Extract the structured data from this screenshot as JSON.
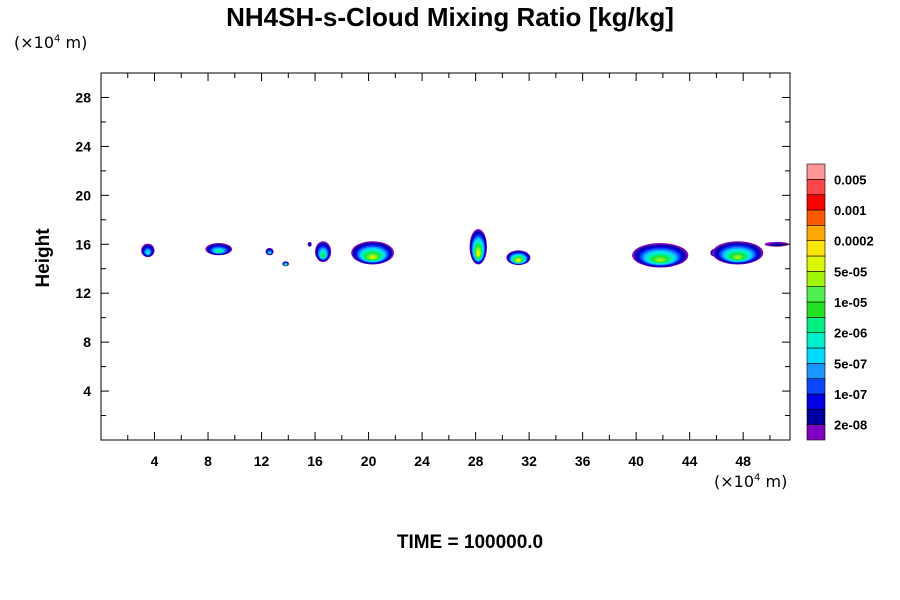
{
  "title": "NH4SH-s-Cloud Mixing Ratio [kg/kg]",
  "y_unit": {
    "prefix": "(×10",
    "exp": "4",
    "suffix": " m)"
  },
  "x_unit": {
    "prefix": "(×10",
    "exp": "4",
    "suffix": " m)"
  },
  "time_label": "TIME = 100000.0",
  "chart_data": {
    "type": "heatmap",
    "title": "NH4SH-s-Cloud Mixing Ratio [kg/kg]",
    "xlabel": "",
    "ylabel": "Height",
    "xlim": [
      0,
      51.5
    ],
    "ylim": [
      0,
      30
    ],
    "x_ticks": [
      4,
      8,
      12,
      16,
      20,
      24,
      28,
      32,
      36,
      40,
      44,
      48
    ],
    "y_ticks": [
      4,
      8,
      12,
      16,
      20,
      24,
      28
    ],
    "x_unit": "×10^4 m",
    "y_unit": "×10^4 m",
    "grid": false,
    "colorbar": {
      "placement": "right",
      "colors": [
        "#7f00bf",
        "#0000a0",
        "#0000e0",
        "#0a46ff",
        "#1996ff",
        "#00dcff",
        "#00f0c8",
        "#00f082",
        "#23e223",
        "#50f050",
        "#a0f500",
        "#dcf500",
        "#ffe600",
        "#ffaa00",
        "#ff5a00",
        "#ff0000",
        "#ff4646",
        "#ff9696"
      ],
      "labels": [
        {
          "text": "2e-08",
          "level": 1
        },
        {
          "text": "1e-07",
          "level": 3
        },
        {
          "text": "5e-07",
          "level": 5
        },
        {
          "text": "2e-06",
          "level": 7
        },
        {
          "text": "1e-05",
          "level": 9
        },
        {
          "text": "5e-05",
          "level": 11
        },
        {
          "text": "0.0002",
          "level": 13
        },
        {
          "text": "0.001",
          "level": 15
        },
        {
          "text": "0.005",
          "level": 17
        }
      ]
    },
    "cells": [
      {
        "x": 3.5,
        "y": 15.5,
        "rx": 0.5,
        "ry": 0.55,
        "max": 6
      },
      {
        "x": 8.8,
        "y": 15.6,
        "rx": 1.0,
        "ry": 0.5,
        "max": 7
      },
      {
        "x": 12.6,
        "y": 15.4,
        "rx": 0.3,
        "ry": 0.3,
        "max": 6
      },
      {
        "x": 13.8,
        "y": 14.4,
        "rx": 0.25,
        "ry": 0.2,
        "max": 8
      },
      {
        "x": 15.6,
        "y": 16.0,
        "rx": 0.15,
        "ry": 0.2,
        "max": 2
      },
      {
        "x": 16.6,
        "y": 15.4,
        "rx": 0.6,
        "ry": 0.85,
        "max": 8
      },
      {
        "x": 20.3,
        "y": 15.3,
        "rx": 1.6,
        "ry": 0.95,
        "max": 11
      },
      {
        "x": 28.2,
        "y": 15.8,
        "rx": 0.65,
        "ry": 1.45,
        "max": 12
      },
      {
        "x": 31.2,
        "y": 14.9,
        "rx": 0.9,
        "ry": 0.6,
        "max": 12
      },
      {
        "x": 41.8,
        "y": 15.1,
        "rx": 2.1,
        "ry": 1.0,
        "max": 10
      },
      {
        "x": 45.8,
        "y": 15.3,
        "rx": 0.25,
        "ry": 0.3,
        "max": 6
      },
      {
        "x": 47.6,
        "y": 15.3,
        "rx": 1.9,
        "ry": 0.95,
        "max": 10
      },
      {
        "x": 50.5,
        "y": 16.0,
        "rx": 0.9,
        "ry": 0.2,
        "max": 1
      }
    ]
  }
}
